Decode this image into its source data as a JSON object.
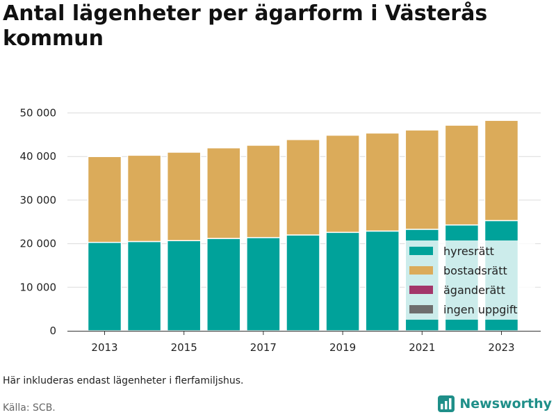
{
  "title": "Antal lägenheter per ägarform i Västerås kommun",
  "note": "Här inkluderas endast lägenheter i flerfamiljshus.",
  "source": "Källa: SCB.",
  "brand": {
    "name": "Newsworthy",
    "icon": "bar-chart-logo-icon",
    "color": "#1f8f89"
  },
  "chart_data": {
    "type": "bar",
    "stacked": true,
    "categories": [
      "2013",
      "2014",
      "2015",
      "2016",
      "2017",
      "2018",
      "2019",
      "2020",
      "2021",
      "2022",
      "2023"
    ],
    "x_tick_labels": [
      "2013",
      "2015",
      "2017",
      "2019",
      "2021",
      "2023"
    ],
    "y_ticks": [
      0,
      10000,
      20000,
      30000,
      40000,
      50000
    ],
    "y_tick_labels": [
      "0",
      "10 000",
      "20 000",
      "30 000",
      "40 000",
      "50 000"
    ],
    "ylim": [
      0,
      52000
    ],
    "grid": true,
    "legend_position": "bottom-right inside",
    "series": [
      {
        "name": "hyresrätt",
        "color": "#00a29a",
        "values": [
          20300,
          20500,
          20700,
          21200,
          21400,
          22000,
          22600,
          22900,
          23300,
          24300,
          25300
        ]
      },
      {
        "name": "bostadsrätt",
        "color": "#dbab5a",
        "values": [
          19700,
          19800,
          20300,
          20800,
          21200,
          21900,
          22300,
          22500,
          22800,
          22900,
          23000
        ]
      },
      {
        "name": "äganderätt",
        "color": "#a3366a",
        "values": [
          0,
          0,
          0,
          0,
          0,
          0,
          0,
          0,
          0,
          0,
          0
        ]
      },
      {
        "name": "ingen uppgift",
        "color": "#6e6e6e",
        "values": [
          0,
          0,
          0,
          0,
          0,
          0,
          0,
          0,
          0,
          0,
          0
        ]
      }
    ]
  }
}
